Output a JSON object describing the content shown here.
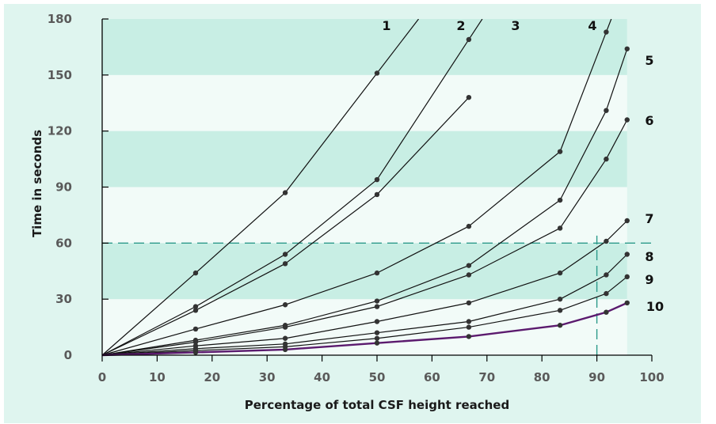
{
  "chart_data": {
    "type": "line",
    "title": "",
    "xlabel": "Percentage of total CSF height reached",
    "ylabel": "Time in seconds",
    "xlim": [
      0,
      100
    ],
    "ylim": [
      0,
      180
    ],
    "x_ticks": [
      "0",
      "10",
      "20",
      "30",
      "40",
      "50",
      "60",
      "70",
      "80",
      "90",
      "100"
    ],
    "y_ticks": [
      "0",
      "30",
      "60",
      "90",
      "120",
      "150",
      "180"
    ],
    "reference_lines": [
      {
        "axis": "y",
        "value": 60,
        "style": "dashed"
      },
      {
        "axis": "x",
        "value": 90,
        "style": "dashed"
      }
    ],
    "grid": "alternating horizontal bands",
    "series": [
      {
        "name": "1",
        "x": [
          0,
          17,
          33.3,
          50
        ],
        "y": [
          0,
          44,
          87,
          151
        ]
      },
      {
        "name": "2",
        "x": [
          0,
          17,
          33.3,
          50,
          66.7
        ],
        "y": [
          0,
          26,
          54,
          94,
          169
        ]
      },
      {
        "name": "3",
        "x": [
          0,
          17,
          33.3,
          50,
          66.7
        ],
        "y": [
          0,
          24,
          49,
          86,
          138
        ]
      },
      {
        "name": "4",
        "x": [
          0,
          17,
          33.3,
          50,
          66.7,
          83.3,
          91.7
        ],
        "y": [
          0,
          14,
          27,
          44,
          69,
          109,
          173
        ]
      },
      {
        "name": "5",
        "x": [
          0,
          17,
          33.3,
          50,
          66.7,
          83.3,
          91.7,
          95.5
        ],
        "y": [
          0,
          8,
          16,
          29,
          48,
          83,
          131,
          164
        ]
      },
      {
        "name": "6",
        "x": [
          0,
          17,
          33.3,
          50,
          66.7,
          83.3,
          91.7,
          95.5
        ],
        "y": [
          0,
          7,
          15,
          26,
          43,
          68,
          105,
          126
        ]
      },
      {
        "name": "7",
        "x": [
          0,
          17,
          33.3,
          50,
          66.7,
          83.3,
          91.7,
          95.5
        ],
        "y": [
          0,
          5,
          9,
          18,
          28,
          44,
          61,
          72
        ]
      },
      {
        "name": "8",
        "x": [
          0,
          17,
          33.3,
          50,
          66.7,
          83.3,
          91.7,
          95.5
        ],
        "y": [
          0,
          3.5,
          6,
          12,
          18,
          30,
          43,
          54
        ]
      },
      {
        "name": "9",
        "x": [
          0,
          17,
          33.3,
          50,
          66.7,
          83.3,
          91.7,
          95.5
        ],
        "y": [
          0,
          2.5,
          4.5,
          9,
          15,
          24,
          33,
          42
        ]
      },
      {
        "name": "10",
        "x": [
          0,
          17,
          33.3,
          50,
          66.7,
          83.3,
          91.7,
          95.5
        ],
        "y": [
          0,
          1.5,
          3,
          6.5,
          10,
          16,
          23,
          28
        ],
        "highlight": true
      }
    ],
    "colors": {
      "background": "#dff5ef",
      "band": "#c8eee4",
      "plot_bg": "#f2fbf8",
      "line": "#111111",
      "highlight": "#5b1a6e",
      "reference": "#2c9a8a",
      "marker": "#333333"
    }
  }
}
